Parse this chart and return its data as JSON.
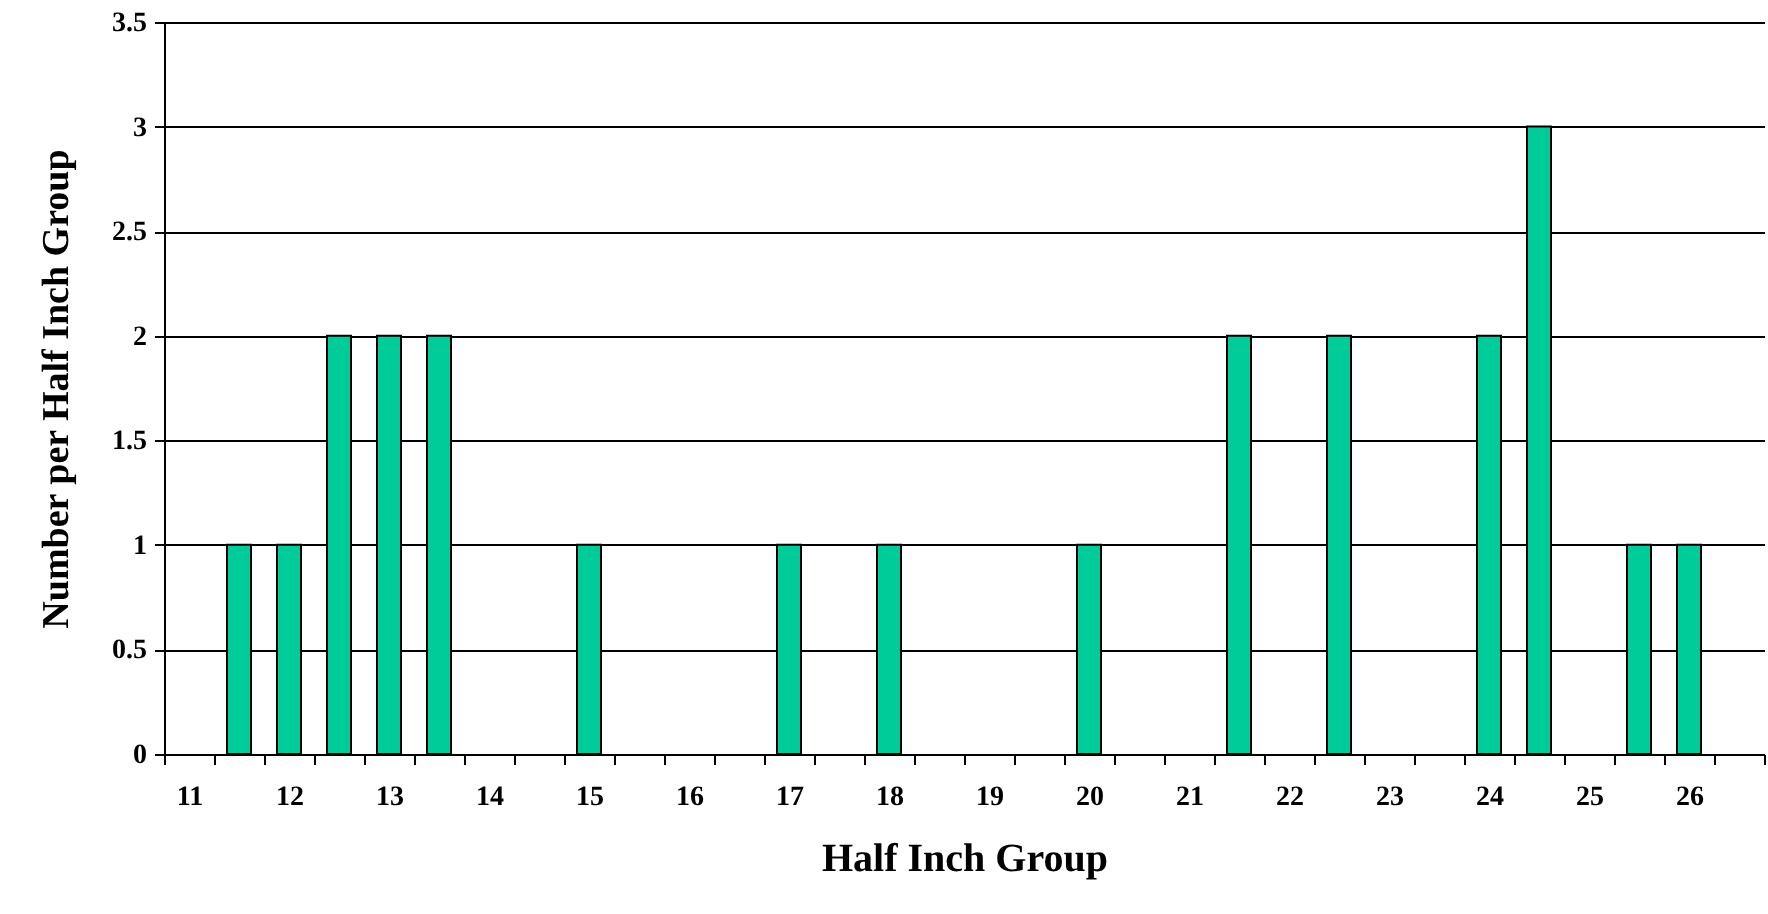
{
  "chart_data": {
    "type": "bar",
    "xlabel": "Half Inch Group",
    "ylabel": "Number per Half Inch Group",
    "categories": [
      "11",
      null,
      "12",
      null,
      "13",
      null,
      "14",
      null,
      "15",
      null,
      "16",
      null,
      "17",
      null,
      "18",
      null,
      "19",
      null,
      "20",
      null,
      "21",
      null,
      "22",
      null,
      "23",
      null,
      "24",
      null,
      "25",
      null,
      "26",
      null
    ],
    "values": [
      null,
      1,
      1,
      2,
      2,
      2,
      null,
      null,
      1,
      null,
      null,
      null,
      1,
      null,
      1,
      null,
      null,
      null,
      1,
      null,
      null,
      2,
      null,
      2,
      null,
      null,
      2,
      3,
      null,
      1,
      1,
      null
    ],
    "color": "#00cc99",
    "ylim": [
      0,
      3.5
    ],
    "yticks": [
      0,
      0.5,
      1,
      1.5,
      2,
      2.5,
      3,
      3.5
    ],
    "grid": "y"
  }
}
